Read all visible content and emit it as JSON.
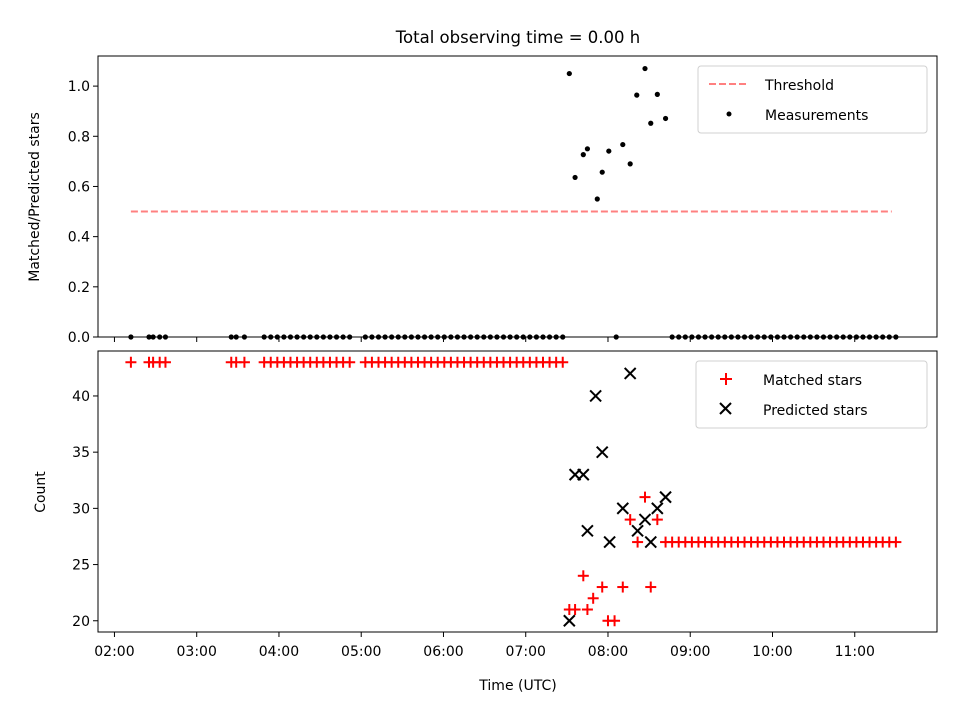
{
  "chart_data": {
    "type": "scatter",
    "title": "Total observing time = 0.00 h",
    "xlabel": "Time (UTC)",
    "x_unit": "hours UTC",
    "xlim": [
      1.8,
      12.0
    ],
    "x_ticks": [
      {
        "value": 2,
        "label": "02:00"
      },
      {
        "value": 3,
        "label": "03:00"
      },
      {
        "value": 4,
        "label": "04:00"
      },
      {
        "value": 5,
        "label": "05:00"
      },
      {
        "value": 6,
        "label": "06:00"
      },
      {
        "value": 7,
        "label": "07:00"
      },
      {
        "value": 8,
        "label": "08:00"
      },
      {
        "value": 9,
        "label": "09:00"
      },
      {
        "value": 10,
        "label": "10:00"
      },
      {
        "value": 11,
        "label": "11:00"
      }
    ],
    "panels": [
      {
        "name": "top",
        "ylabel": "Matched/Predicted stars",
        "ylim": [
          0.0,
          1.12
        ],
        "y_ticks": [
          {
            "value": 0.0,
            "label": "0.0"
          },
          {
            "value": 0.2,
            "label": "0.2"
          },
          {
            "value": 0.4,
            "label": "0.4"
          },
          {
            "value": 0.6,
            "label": "0.6"
          },
          {
            "value": 0.8,
            "label": "0.8"
          },
          {
            "value": 1.0,
            "label": "1.0"
          }
        ],
        "legend_position": "top-right",
        "series": [
          {
            "name": "Threshold",
            "kind": "dashed-line",
            "color": "#ff8080",
            "x": [
              2.2,
              11.45
            ],
            "y": [
              0.5,
              0.5
            ]
          },
          {
            "name": "Measurements",
            "kind": "dot",
            "color": "#000000",
            "x": [
              2.2,
              2.42,
              2.47,
              2.55,
              2.62,
              3.42,
              3.48,
              3.58,
              3.82,
              3.9,
              3.98,
              4.06,
              4.14,
              4.22,
              4.3,
              4.38,
              4.46,
              4.54,
              4.62,
              4.7,
              4.78,
              4.86,
              5.05,
              5.13,
              5.21,
              5.29,
              5.37,
              5.45,
              5.53,
              5.61,
              5.69,
              5.77,
              5.85,
              5.93,
              6.01,
              6.09,
              6.17,
              6.25,
              6.33,
              6.41,
              6.49,
              6.57,
              6.65,
              6.73,
              6.81,
              6.89,
              6.97,
              7.05,
              7.13,
              7.21,
              7.29,
              7.37,
              7.45,
              7.53,
              7.6,
              7.7,
              7.75,
              7.87,
              7.93,
              8.01,
              8.1,
              8.18,
              8.27,
              8.35,
              8.45,
              8.52,
              8.6,
              8.7,
              8.78,
              8.86,
              8.94,
              9.02,
              9.1,
              9.18,
              9.26,
              9.34,
              9.42,
              9.5,
              9.58,
              9.66,
              9.74,
              9.82,
              9.9,
              9.98,
              10.06,
              10.14,
              10.22,
              10.3,
              10.38,
              10.46,
              10.54,
              10.62,
              10.7,
              10.78,
              10.86,
              10.94,
              11.02,
              11.1,
              11.18,
              11.26,
              11.34,
              11.42,
              11.5
            ],
            "y": [
              0,
              0,
              0,
              0,
              0,
              0,
              0,
              0,
              0,
              0,
              0,
              0,
              0,
              0,
              0,
              0,
              0,
              0,
              0,
              0,
              0,
              0,
              0,
              0,
              0,
              0,
              0,
              0,
              0,
              0,
              0,
              0,
              0,
              0,
              0,
              0,
              0,
              0,
              0,
              0,
              0,
              0,
              0,
              0,
              0,
              0,
              0,
              0,
              0,
              0,
              0,
              0,
              0,
              1.05,
              0.636,
              0.727,
              0.75,
              0.55,
              0.657,
              0.741,
              0,
              0.767,
              0.69,
              0.964,
              1.07,
              0.852,
              0.967,
              0.871,
              0,
              0,
              0,
              0,
              0,
              0,
              0,
              0,
              0,
              0,
              0,
              0,
              0,
              0,
              0,
              0,
              0,
              0,
              0,
              0,
              0,
              0,
              0,
              0,
              0,
              0,
              0,
              0,
              0,
              0,
              0,
              0,
              0,
              0,
              0
            ]
          }
        ]
      },
      {
        "name": "bottom",
        "ylabel": "Count",
        "ylim": [
          19.0,
          44.0
        ],
        "y_ticks": [
          {
            "value": 20,
            "label": "20"
          },
          {
            "value": 25,
            "label": "25"
          },
          {
            "value": 30,
            "label": "30"
          },
          {
            "value": 35,
            "label": "35"
          },
          {
            "value": 40,
            "label": "40"
          }
        ],
        "legend_position": "top-right",
        "series": [
          {
            "name": "Matched stars",
            "kind": "plus",
            "color": "#ff0000",
            "x": [
              2.2,
              2.42,
              2.47,
              2.55,
              2.62,
              3.42,
              3.48,
              3.58,
              3.82,
              3.9,
              3.98,
              4.06,
              4.14,
              4.22,
              4.3,
              4.38,
              4.46,
              4.54,
              4.62,
              4.7,
              4.78,
              4.86,
              5.05,
              5.13,
              5.21,
              5.29,
              5.37,
              5.45,
              5.53,
              5.61,
              5.69,
              5.77,
              5.85,
              5.93,
              6.01,
              6.09,
              6.17,
              6.25,
              6.33,
              6.41,
              6.49,
              6.57,
              6.65,
              6.73,
              6.81,
              6.89,
              6.97,
              7.05,
              7.13,
              7.21,
              7.29,
              7.37,
              7.45,
              7.53,
              7.6,
              7.7,
              7.75,
              7.82,
              7.93,
              8.0,
              8.08,
              8.18,
              8.27,
              8.36,
              8.45,
              8.52,
              8.6,
              8.7,
              8.78,
              8.86,
              8.94,
              9.02,
              9.1,
              9.18,
              9.26,
              9.34,
              9.42,
              9.5,
              9.58,
              9.66,
              9.74,
              9.82,
              9.9,
              9.98,
              10.06,
              10.14,
              10.22,
              10.3,
              10.38,
              10.46,
              10.54,
              10.62,
              10.7,
              10.78,
              10.86,
              10.94,
              11.02,
              11.1,
              11.18,
              11.26,
              11.34,
              11.42,
              11.5
            ],
            "y": [
              43,
              43,
              43,
              43,
              43,
              43,
              43,
              43,
              43,
              43,
              43,
              43,
              43,
              43,
              43,
              43,
              43,
              43,
              43,
              43,
              43,
              43,
              43,
              43,
              43,
              43,
              43,
              43,
              43,
              43,
              43,
              43,
              43,
              43,
              43,
              43,
              43,
              43,
              43,
              43,
              43,
              43,
              43,
              43,
              43,
              43,
              43,
              43,
              43,
              43,
              43,
              43,
              43,
              21,
              21,
              24,
              21,
              22,
              23,
              20,
              20,
              23,
              29,
              27,
              31,
              23,
              29,
              27,
              27,
              27,
              27,
              27,
              27,
              27,
              27,
              27,
              27,
              27,
              27,
              27,
              27,
              27,
              27,
              27,
              27,
              27,
              27,
              27,
              27,
              27,
              27,
              27,
              27,
              27,
              27,
              27,
              27,
              27,
              27,
              27,
              27,
              27,
              27
            ]
          },
          {
            "name": "Predicted stars",
            "kind": "x",
            "color": "#000000",
            "x": [
              7.53,
              7.6,
              7.7,
              7.75,
              7.85,
              7.93,
              8.02,
              8.18,
              8.27,
              8.36,
              8.45,
              8.52,
              8.6,
              8.7
            ],
            "y": [
              20,
              33,
              33,
              28,
              40,
              35,
              27,
              30,
              42,
              28,
              29,
              27,
              30,
              31
            ]
          }
        ]
      }
    ]
  }
}
